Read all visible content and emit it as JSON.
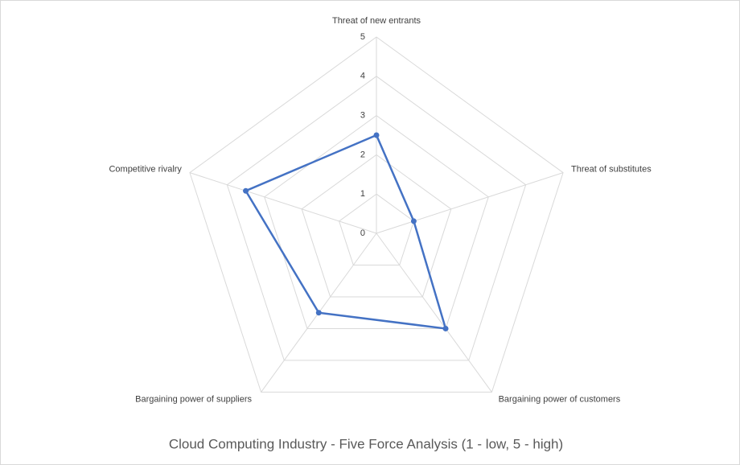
{
  "chart_data": {
    "type": "radar",
    "title": "Cloud Computing Industry - Five Force Analysis (1 - low, 5 - high)",
    "categories": [
      "Threat of new entrants",
      "Threat of substitutes",
      "Bargaining power of customers",
      "Bargaining power of suppliers",
      "Competitive rivalry"
    ],
    "series": [
      {
        "name": "Five Force Analysis",
        "color": "#4472c4",
        "values": [
          2.5,
          1,
          3,
          2.5,
          3.5
        ]
      }
    ],
    "rlim": [
      0,
      5
    ],
    "rticks": [
      0,
      1,
      2,
      3,
      4,
      5
    ],
    "grid": true
  }
}
